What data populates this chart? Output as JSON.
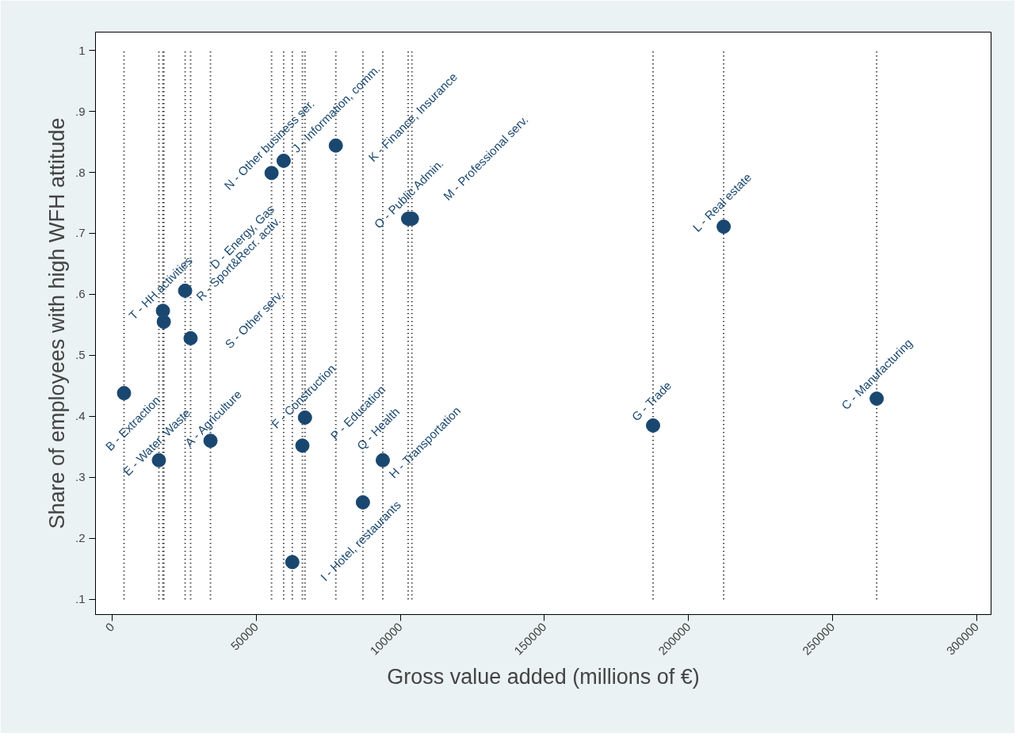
{
  "chart_data": {
    "type": "scatter",
    "xlabel": "Gross value added (millions of €)",
    "ylabel": "Share of employees with high WFH attitude",
    "x": [
      4100,
      16200,
      17600,
      17900,
      25300,
      27200,
      34100,
      55300,
      59500,
      62500,
      66000,
      66900,
      77600,
      87000,
      93900,
      102700,
      104000,
      187700,
      212200,
      265300
    ],
    "series": [
      {
        "color": "#1a476f",
        "values": [
          0.438,
          0.328,
          0.573,
          0.555,
          0.606,
          0.528,
          0.36,
          0.799,
          0.819,
          0.161,
          0.352,
          0.398,
          0.844,
          0.259,
          0.328,
          0.724,
          0.724,
          0.385,
          0.711,
          0.429
        ]
      }
    ],
    "marker": "circle",
    "grid": false,
    "xlim": [
      -5800,
      305000
    ],
    "ylim": [
      0.075,
      1.03
    ],
    "xticks": [
      0,
      50000,
      100000,
      150000,
      200000,
      250000,
      300000
    ],
    "yticks": [
      {
        "value": 0.1,
        "label": ".1"
      },
      {
        "value": 0.2,
        "label": ".2"
      },
      {
        "value": 0.3,
        "label": ".3"
      },
      {
        "value": 0.4,
        "label": ".4"
      },
      {
        "value": 0.5,
        "label": ".5"
      },
      {
        "value": 0.6,
        "label": ".6"
      },
      {
        "value": 0.7,
        "label": ".7"
      },
      {
        "value": 0.8,
        "label": ".8"
      },
      {
        "value": 0.9,
        "label": ".9"
      },
      1
    ],
    "annotations": [
      {
        "text": "B - Extraction",
        "x": 4100,
        "y": 0.438
      },
      {
        "text": "E - Water, Waste",
        "x": 16200,
        "y": 0.328
      },
      {
        "text": "T - HH activities",
        "x": 17600,
        "y": 0.573
      },
      {
        "text": "R - Sport&Recr. activ.",
        "x": 17900,
        "y": 0.555
      },
      {
        "text": "D - Energy, Gas",
        "x": 25300,
        "y": 0.606
      },
      {
        "text": "S - Other serv.",
        "x": 27200,
        "y": 0.528
      },
      {
        "text": "A - Agriculture",
        "x": 34100,
        "y": 0.36
      },
      {
        "text": "N - Other business ser.",
        "x": 55300,
        "y": 0.799
      },
      {
        "text": "J - Information, comm.",
        "x": 59500,
        "y": 0.819
      },
      {
        "text": "I - Hotel, restaurants",
        "x": 62500,
        "y": 0.161
      },
      {
        "text": "P - Education",
        "x": 66000,
        "y": 0.352
      },
      {
        "text": "F - Construction",
        "x": 66900,
        "y": 0.398
      },
      {
        "text": "K - Finance, Insurance",
        "x": 77600,
        "y": 0.844
      },
      {
        "text": "H - Transportation",
        "x": 87000,
        "y": 0.259
      },
      {
        "text": "Q - Health",
        "x": 93900,
        "y": 0.328
      },
      {
        "text": "O - Public Admin.",
        "x": 102700,
        "y": 0.724
      },
      {
        "text": "M - Professional serv.",
        "x": 104000,
        "y": 0.724
      },
      {
        "text": "G - Trade",
        "x": 187700,
        "y": 0.385
      },
      {
        "text": "L - Real estate",
        "x": 212200,
        "y": 0.711
      },
      {
        "text": "C - Manufacturing",
        "x": 265300,
        "y": 0.429
      }
    ],
    "ref_lines": [
      {
        "axis": "x",
        "value": 4100,
        "line_style": "dotted"
      },
      {
        "axis": "x",
        "value": 16200,
        "line_style": "dotted"
      },
      {
        "axis": "x",
        "value": 17600,
        "line_style": "dotted"
      },
      {
        "axis": "x",
        "value": 17900,
        "line_style": "dotted"
      },
      {
        "axis": "x",
        "value": 25300,
        "line_style": "dotted"
      },
      {
        "axis": "x",
        "value": 27200,
        "line_style": "dotted"
      },
      {
        "axis": "x",
        "value": 34100,
        "line_style": "dotted"
      },
      {
        "axis": "x",
        "value": 55300,
        "line_style": "dotted"
      },
      {
        "axis": "x",
        "value": 59500,
        "line_style": "dotted"
      },
      {
        "axis": "x",
        "value": 62500,
        "line_style": "dotted"
      },
      {
        "axis": "x",
        "value": 66000,
        "line_style": "dotted"
      },
      {
        "axis": "x",
        "value": 66900,
        "line_style": "dotted"
      },
      {
        "axis": "x",
        "value": 77600,
        "line_style": "dotted"
      },
      {
        "axis": "x",
        "value": 87000,
        "line_style": "dotted"
      },
      {
        "axis": "x",
        "value": 93900,
        "line_style": "dotted"
      },
      {
        "axis": "x",
        "value": 102700,
        "line_style": "dotted"
      },
      {
        "axis": "x",
        "value": 104000,
        "line_style": "dotted"
      },
      {
        "axis": "x",
        "value": 187700,
        "line_style": "dotted"
      },
      {
        "axis": "x",
        "value": 212200,
        "line_style": "dotted"
      },
      {
        "axis": "x",
        "value": 265300,
        "line_style": "dotted"
      }
    ]
  }
}
